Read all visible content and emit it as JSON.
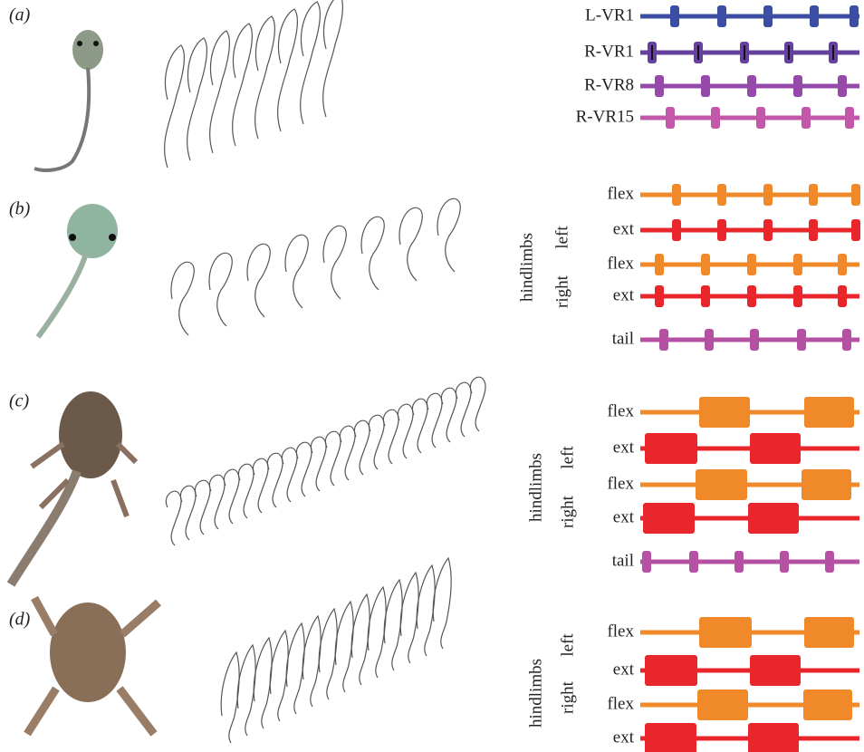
{
  "panels": [
    {
      "label": "(a)",
      "traces": [
        "L-VR1",
        "R-VR1",
        "R-VR8",
        "R-VR15"
      ]
    },
    {
      "label": "(b)",
      "side": {
        "group": "hindlimbs",
        "upper": "left",
        "lower": "right"
      },
      "traces": [
        "flex",
        "ext",
        "flex",
        "ext",
        "tail"
      ]
    },
    {
      "label": "(c)",
      "side": {
        "group": "hindlimbs",
        "upper": "left",
        "lower": "right"
      },
      "traces": [
        "flex",
        "ext",
        "flex",
        "ext",
        "tail"
      ]
    },
    {
      "label": "(d)",
      "side": {
        "group": "hindlimbs",
        "upper": "left",
        "lower": "right"
      },
      "traces": [
        "flex",
        "ext",
        "flex",
        "ext"
      ]
    }
  ]
}
